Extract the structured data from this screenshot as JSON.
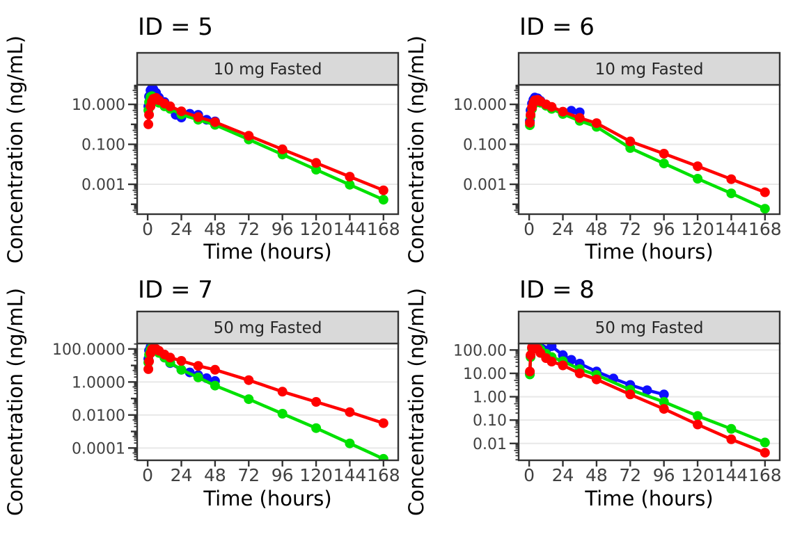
{
  "figure": {
    "xlabel": "Time (hours)",
    "ylabel": "Concentration (ng/mL)",
    "background": "#ffffff",
    "strip_fill": "#d9d9d9",
    "strip_text_color": "#262626",
    "panel_border_color": "#333333",
    "grid_color": "#e8e8e8",
    "tick_color": "#333333",
    "tick_label_color": "#404040",
    "title_color": "#000000",
    "series_colors": {
      "blue": "#0f0fff",
      "green": "#00e100",
      "red": "#ff0000"
    }
  },
  "chart_data": {
    "type": "line",
    "log_y": true,
    "legend": "none",
    "xlabel": "Time (hours)",
    "ylabel": "Concentration (ng/mL)",
    "x_ticks": [
      0,
      24,
      48,
      72,
      96,
      120,
      144,
      168
    ],
    "xlim": [
      -7.5,
      178.5
    ],
    "facets": [
      {
        "title": "ID = 5",
        "strip": "10 mg Fasted",
        "ylim": [
          3.2e-05,
          95
        ],
        "y_ticks": [
          {
            "value": 10,
            "label": "10.000"
          },
          {
            "value": 0.1,
            "label": "0.100"
          },
          {
            "value": 0.001,
            "label": "0.001"
          }
        ],
        "series": [
          {
            "name": "blue",
            "x": [
              0.5,
              1,
              2,
              3,
              4,
              6,
              8,
              12,
              16,
              20,
              24,
              30,
              36,
              42,
              48
            ],
            "y": [
              8,
              25,
              50,
              62,
              58,
              38,
              22,
              13,
              6.5,
              3.0,
              2.2,
              3.4,
              3.0,
              1.7,
              1.4
            ]
          },
          {
            "name": "green",
            "x": [
              0.5,
              1,
              2,
              3,
              4,
              6,
              8,
              12,
              16,
              24,
              36,
              48,
              72,
              96,
              120,
              144,
              168
            ],
            "y": [
              5,
              13,
              24,
              26,
              23,
              17,
              12,
              8,
              6,
              3.1,
              1.7,
              0.95,
              0.175,
              0.031,
              0.0054,
              0.00095,
              0.00017
            ]
          },
          {
            "name": "red",
            "x": [
              0.5,
              1,
              2,
              3,
              4,
              6,
              8,
              12,
              16,
              24,
              36,
              48,
              72,
              96,
              120,
              144,
              168
            ],
            "y": [
              1.0,
              3,
              8,
              14,
              19,
              21,
              16,
              11,
              8,
              4.5,
              2.3,
              1.3,
              0.27,
              0.056,
              0.0117,
              0.0024,
              0.0005
            ]
          }
        ]
      },
      {
        "title": "ID = 6",
        "strip": "10 mg Fasted",
        "ylim": [
          3.2e-05,
          95
        ],
        "y_ticks": [
          {
            "value": 10,
            "label": "10.000"
          },
          {
            "value": 0.1,
            "label": "0.100"
          },
          {
            "value": 0.001,
            "label": "0.001"
          }
        ],
        "series": [
          {
            "name": "blue",
            "x": [
              0.5,
              1,
              2,
              3,
              4,
              6,
              8,
              12,
              16,
              24,
              30,
              36
            ],
            "y": [
              1.5,
              5,
              11,
              17,
              22,
              20,
              15,
              9.5,
              7,
              3.5,
              4.8,
              4.0
            ]
          },
          {
            "name": "green",
            "x": [
              0.5,
              1,
              2,
              3,
              4,
              6,
              8,
              12,
              16,
              24,
              36,
              48,
              72,
              96,
              120,
              144,
              168
            ],
            "y": [
              0.9,
              2.5,
              6,
              10,
              14,
              15,
              12,
              8.5,
              6,
              3.3,
              1.5,
              0.75,
              0.065,
              0.011,
              0.0019,
              0.00035,
              6e-05
            ]
          },
          {
            "name": "red",
            "x": [
              0.5,
              1,
              2,
              3,
              4,
              6,
              8,
              12,
              16,
              24,
              36,
              48,
              72,
              96,
              120,
              144,
              168
            ],
            "y": [
              1.2,
              3,
              7,
              12,
              16,
              17,
              14,
              10,
              7.5,
              4.3,
              2.1,
              1.15,
              0.14,
              0.034,
              0.008,
              0.0018,
              0.0004
            ]
          }
        ]
      },
      {
        "title": "ID = 7",
        "strip": "50 mg Fasted",
        "ylim": [
          1.8e-05,
          215
        ],
        "y_ticks": [
          {
            "value": 100,
            "label": "100.0000"
          },
          {
            "value": 1,
            "label": "1.0000"
          },
          {
            "value": 0.01,
            "label": "0.0100"
          },
          {
            "value": 0.0001,
            "label": "0.0001"
          }
        ],
        "series": [
          {
            "name": "blue",
            "x": [
              0.5,
              1,
              2,
              3,
              4,
              6,
              8,
              12,
              16,
              24,
              30,
              36,
              42,
              48
            ],
            "y": [
              25,
              80,
              130,
              150,
              135,
              95,
              60,
              30,
              14,
              5.5,
              3.8,
              2.6,
              1.7,
              1.15
            ]
          },
          {
            "name": "green",
            "x": [
              0.5,
              1,
              2,
              3,
              4,
              6,
              8,
              12,
              16,
              24,
              36,
              48,
              72,
              96,
              120,
              144,
              168
            ],
            "y": [
              15,
              45,
              90,
              120,
              110,
              85,
              58,
              30,
              15,
              5.5,
              1.9,
              0.6,
              0.091,
              0.012,
              0.0016,
              0.00019,
              2.2e-05
            ]
          },
          {
            "name": "red",
            "x": [
              0.5,
              1,
              2,
              3,
              4,
              6,
              8,
              12,
              16,
              24,
              36,
              48,
              72,
              96,
              120,
              144,
              168
            ],
            "y": [
              6,
              18,
              55,
              95,
              110,
              100,
              78,
              46,
              30,
              19,
              9.5,
              5.5,
              1.3,
              0.26,
              0.062,
              0.015,
              0.0032
            ]
          }
        ]
      },
      {
        "title": "ID = 8",
        "strip": "50 mg Fasted",
        "ylim": [
          0.0019,
          190
        ],
        "y_ticks": [
          {
            "value": 100,
            "label": "100.00"
          },
          {
            "value": 10,
            "label": "10.00"
          },
          {
            "value": 1,
            "label": "1.00"
          },
          {
            "value": 0.1,
            "label": "0.10"
          },
          {
            "value": 0.01,
            "label": "0.01"
          }
        ],
        "series": [
          {
            "name": "blue",
            "x": [
              0.5,
              1,
              2,
              3,
              4,
              6,
              8,
              10,
              12,
              16,
              24,
              30,
              36,
              48,
              60,
              72,
              84,
              96
            ],
            "y": [
              10,
              55,
              120,
              170,
              185,
              160,
              125,
              105,
              95,
              145,
              60,
              38,
              26,
              12,
              6,
              3.2,
              1.9,
              1.25
            ]
          },
          {
            "name": "green",
            "x": [
              0.5,
              1,
              2,
              3,
              4,
              6,
              8,
              12,
              16,
              24,
              36,
              48,
              72,
              96,
              120,
              144,
              168
            ],
            "y": [
              9,
              50,
              115,
              160,
              165,
              140,
              105,
              70,
              50,
              33,
              15,
              8.5,
              2.0,
              0.6,
              0.15,
              0.042,
              0.011
            ]
          },
          {
            "name": "red",
            "x": [
              0.5,
              1,
              2,
              3,
              4,
              6,
              8,
              12,
              16,
              24,
              36,
              48,
              72,
              96,
              120,
              144,
              168
            ],
            "y": [
              12,
              60,
              130,
              160,
              150,
              110,
              75,
              45,
              32,
              22,
              10,
              5.5,
              1.25,
              0.3,
              0.065,
              0.015,
              0.004
            ]
          }
        ]
      }
    ]
  }
}
